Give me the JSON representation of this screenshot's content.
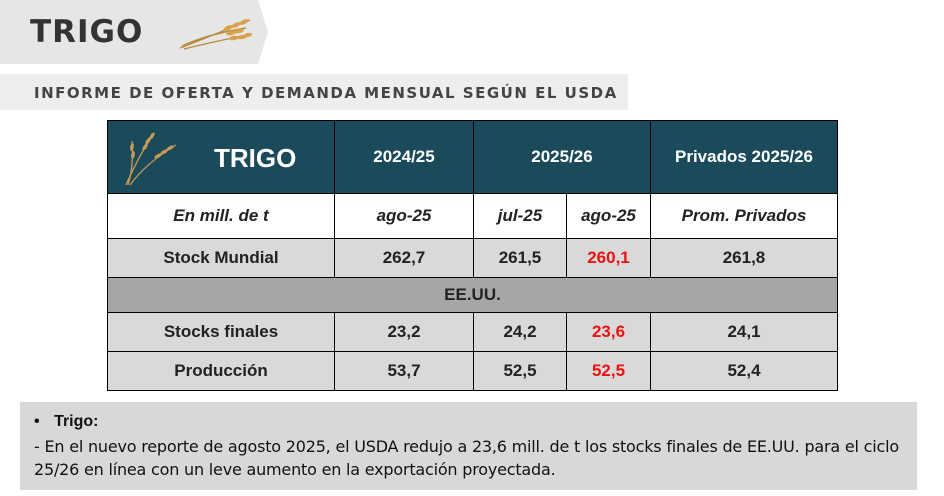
{
  "header": {
    "title": "TRIGO",
    "subtitle": "INFORME DE OFERTA Y DEMANDA MENSUAL SEGÚN EL USDA"
  },
  "table": {
    "header_label": "TRIGO",
    "col_2024": "2024/25",
    "col_2025": "2025/26",
    "col_privados": "Privados 2025/26",
    "unit_label": "En mill. de t",
    "sub_ago25_prev": "ago-25",
    "sub_jul25": "jul-25",
    "sub_ago25": "ago-25",
    "sub_prom": "Prom. Privados",
    "rows": [
      {
        "label": "Stock Mundial",
        "v2024": "262,7",
        "jul": "261,5",
        "ago": "260,1",
        "priv": "261,8"
      }
    ],
    "section_label": "EE.UU.",
    "us_rows": [
      {
        "label": "Stocks finales",
        "v2024": "23,2",
        "jul": "24,2",
        "ago": "23,6",
        "priv": "24,1"
      },
      {
        "label": "Producción",
        "v2024": "53,7",
        "jul": "52,5",
        "ago": "52,5",
        "priv": "52,4"
      }
    ],
    "highlight_color": "#ee1111",
    "header_color": "#1b4a5b"
  },
  "note": {
    "title": "Trigo:",
    "bullet": "•",
    "body": "- En el nuevo reporte de agosto 2025, el USDA redujo a 23,6 mill. de t los stocks finales de EE.UU. para el ciclo 25/26 en línea con un leve aumento en la exportación proyectada."
  },
  "icons": [
    "wheat-icon"
  ]
}
